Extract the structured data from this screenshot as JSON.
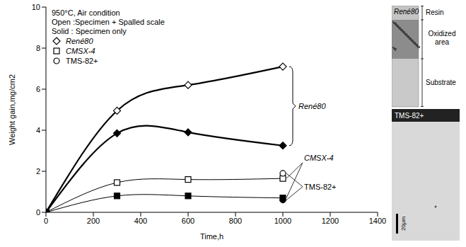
{
  "chart_data": {
    "type": "line",
    "xlabel": "Time,h",
    "ylabel": "Weight gain,mg/cm2",
    "xlim": [
      0,
      1400
    ],
    "xticks": [
      0,
      200,
      400,
      600,
      800,
      1000,
      1200,
      1400
    ],
    "ylim": [
      0,
      10
    ],
    "yticks": [
      0,
      2,
      4,
      6,
      8,
      10
    ],
    "legend": "upper left",
    "annotations": [
      "950°C, Air condition",
      "Open :Specimen + Spalled scale",
      "Solid : Specimen only",
      "René80",
      "CMSX-4",
      "TMS-82+"
    ],
    "series": [
      {
        "name": "René80",
        "color": "#000000",
        "marker": "diamond_open",
        "line_style": "solid",
        "x": [
          0,
          300,
          600,
          1000
        ],
        "values": [
          0,
          4.95,
          6.2,
          7.1
        ]
      },
      {
        "name": "René80",
        "color": "#000000",
        "marker": "diamond_filled",
        "line_style": "solid",
        "x": [
          0,
          300,
          600,
          1000
        ],
        "values": [
          0,
          3.85,
          3.9,
          3.25
        ]
      },
      {
        "name": "CMSX-4",
        "color": "#000000",
        "marker": "square_open",
        "line_style": "solid",
        "x": [
          0,
          300,
          600,
          1000
        ],
        "values": [
          0,
          1.45,
          1.6,
          1.65
        ]
      },
      {
        "name": "CMSX-4",
        "color": "#000000",
        "marker": "square_filled",
        "line_style": "solid",
        "x": [
          0,
          300,
          600,
          1000
        ],
        "values": [
          0,
          0.8,
          0.8,
          0.7
        ]
      },
      {
        "name": "TMS-82+",
        "color": "#000000",
        "marker": "circle_open",
        "line_style": "none",
        "x": [
          1000
        ],
        "values": [
          1.9
        ]
      },
      {
        "name": "TMS-82+",
        "color": "#000000",
        "marker": "circle_filled",
        "line_style": "none",
        "x": [
          1000
        ],
        "values": [
          0.6
        ]
      }
    ]
  },
  "images": [
    {
      "title": "René80",
      "labels": [
        "Resin",
        "Oxidized area",
        "Substrate"
      ]
    },
    {
      "title": "TMS-82+",
      "scale_bar": "20μm"
    }
  ]
}
